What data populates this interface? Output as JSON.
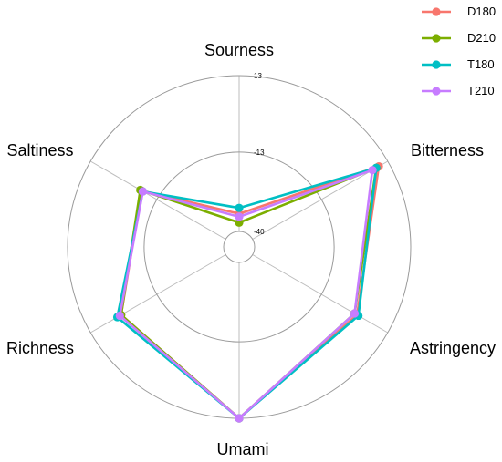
{
  "chart_data": {
    "type": "radar",
    "axes": [
      "Sourness",
      "Bitterness",
      "Astringency",
      "Umami",
      "Richness",
      "Saltiness"
    ],
    "tick_labels": [
      "13",
      "-13",
      "-40"
    ],
    "range": [
      -40,
      13
    ],
    "grid": true,
    "legend_position": "top-right",
    "series": [
      {
        "name": "D180",
        "color": "#F8766D",
        "values": [
          -34,
          9.5,
          1,
          13,
          1,
          -7
        ]
      },
      {
        "name": "D210",
        "color": "#7CAE00",
        "values": [
          -37,
          8.5,
          0,
          13,
          1,
          -6.5
        ]
      },
      {
        "name": "T180",
        "color": "#00BFC4",
        "values": [
          -32,
          8.5,
          1.5,
          13,
          2.5,
          -7.5
        ]
      },
      {
        "name": "T210",
        "color": "#C77CFF",
        "values": [
          -35,
          7,
          0,
          13,
          1.5,
          -7.5
        ]
      }
    ]
  }
}
